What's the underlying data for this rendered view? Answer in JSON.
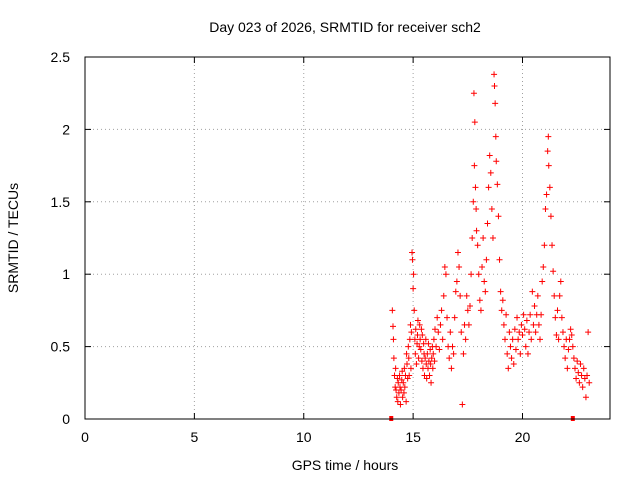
{
  "chart_data": {
    "type": "scatter",
    "title": "Day 023 of 2026, SRMTID for receiver sch2",
    "xlabel": "GPS time / hours",
    "ylabel": "SRMTID / TECUs",
    "xlim": [
      0,
      24
    ],
    "ylim": [
      0,
      2.5
    ],
    "xticks": [
      0,
      5,
      10,
      15,
      20
    ],
    "yticks": [
      0,
      0.5,
      1,
      1.5,
      2,
      2.5
    ],
    "xtick_labels": [
      "0",
      "5",
      "10",
      "15",
      "20"
    ],
    "ytick_labels": [
      "0",
      "0.5",
      "1",
      "1.5",
      "2",
      "2.5"
    ],
    "grid": true,
    "marker": "+",
    "color": "#ff0000",
    "series": [
      {
        "name": "SRMTID",
        "points": [
          [
            14.05,
            0.75
          ],
          [
            14.08,
            0.64
          ],
          [
            14.1,
            0.55
          ],
          [
            14.12,
            0.42
          ],
          [
            14.15,
            0.3
          ],
          [
            14.18,
            0.22
          ],
          [
            14.2,
            0.35
          ],
          [
            14.22,
            0.2
          ],
          [
            14.25,
            0.15
          ],
          [
            14.28,
            0.28
          ],
          [
            14.3,
            0.12
          ],
          [
            14.32,
            0.25
          ],
          [
            14.35,
            0.18
          ],
          [
            14.38,
            0.3
          ],
          [
            14.4,
            0.22
          ],
          [
            14.42,
            0.1
          ],
          [
            14.45,
            0.2
          ],
          [
            14.48,
            0.27
          ],
          [
            14.5,
            0.33
          ],
          [
            14.52,
            0.15
          ],
          [
            14.55,
            0.25
          ],
          [
            14.58,
            0.18
          ],
          [
            14.6,
            0.35
          ],
          [
            14.62,
            0.22
          ],
          [
            14.65,
            0.3
          ],
          [
            14.68,
            0.12
          ],
          [
            14.7,
            0.45
          ],
          [
            14.72,
            0.38
          ],
          [
            14.75,
            0.28
          ],
          [
            14.78,
            0.5
          ],
          [
            14.8,
            0.42
          ],
          [
            14.82,
            0.3
          ],
          [
            14.85,
            0.55
          ],
          [
            14.88,
            0.65
          ],
          [
            14.9,
            0.35
          ],
          [
            14.92,
            0.6
          ],
          [
            14.95,
            1.15
          ],
          [
            14.97,
            1.1
          ],
          [
            15.0,
            0.9
          ],
          [
            15.02,
            1.0
          ],
          [
            15.05,
            0.75
          ],
          [
            15.08,
            0.55
          ],
          [
            15.1,
            0.45
          ],
          [
            15.12,
            0.62
          ],
          [
            15.15,
            0.38
          ],
          [
            15.18,
            0.52
          ],
          [
            15.2,
            0.58
          ],
          [
            15.22,
            0.68
          ],
          [
            15.25,
            0.42
          ],
          [
            15.28,
            0.5
          ],
          [
            15.3,
            0.65
          ],
          [
            15.32,
            0.55
          ],
          [
            15.35,
            0.48
          ],
          [
            15.38,
            0.62
          ],
          [
            15.4,
            0.4
          ],
          [
            15.42,
            0.58
          ],
          [
            15.45,
            0.35
          ],
          [
            15.48,
            0.52
          ],
          [
            15.5,
            0.45
          ],
          [
            15.52,
            0.3
          ],
          [
            15.55,
            0.42
          ],
          [
            15.58,
            0.55
          ],
          [
            15.6,
            0.38
          ],
          [
            15.62,
            0.28
          ],
          [
            15.65,
            0.45
          ],
          [
            15.68,
            0.35
          ],
          [
            15.7,
            0.52
          ],
          [
            15.72,
            0.4
          ],
          [
            15.75,
            0.3
          ],
          [
            15.78,
            0.48
          ],
          [
            15.8,
            0.38
          ],
          [
            15.82,
            0.25
          ],
          [
            15.85,
            0.42
          ],
          [
            15.88,
            0.5
          ],
          [
            15.9,
            0.35
          ],
          [
            15.92,
            0.45
          ],
          [
            15.95,
            0.55
          ],
          [
            15.98,
            0.4
          ],
          [
            16.0,
            0.62
          ],
          [
            16.05,
            0.5
          ],
          [
            16.1,
            0.7
          ],
          [
            16.15,
            0.6
          ],
          [
            16.2,
            0.48
          ],
          [
            16.25,
            0.65
          ],
          [
            16.3,
            0.75
          ],
          [
            16.35,
            0.55
          ],
          [
            16.4,
            0.85
          ],
          [
            16.45,
            1.05
          ],
          [
            16.5,
            1.0
          ],
          [
            16.55,
            0.7
          ],
          [
            16.6,
            0.5
          ],
          [
            16.65,
            0.42
          ],
          [
            16.7,
            0.6
          ],
          [
            16.75,
            0.35
          ],
          [
            16.8,
            0.5
          ],
          [
            16.85,
            0.45
          ],
          [
            16.9,
            0.7
          ],
          [
            16.95,
            0.88
          ],
          [
            17.0,
            0.95
          ],
          [
            17.05,
            1.15
          ],
          [
            17.1,
            1.05
          ],
          [
            17.15,
            0.85
          ],
          [
            17.2,
            0.6
          ],
          [
            17.25,
            0.1
          ],
          [
            17.3,
            0.45
          ],
          [
            17.35,
            0.65
          ],
          [
            17.4,
            0.55
          ],
          [
            17.45,
            0.85
          ],
          [
            17.5,
            0.75
          ],
          [
            17.55,
            0.65
          ],
          [
            17.6,
            0.78
          ],
          [
            17.65,
            1.0
          ],
          [
            17.7,
            1.25
          ],
          [
            17.75,
            1.5
          ],
          [
            17.78,
            2.25
          ],
          [
            17.8,
            1.75
          ],
          [
            17.82,
            2.05
          ],
          [
            17.85,
            1.6
          ],
          [
            17.88,
            1.45
          ],
          [
            17.9,
            1.3
          ],
          [
            17.95,
            1.2
          ],
          [
            18.0,
            1.0
          ],
          [
            18.05,
            0.82
          ],
          [
            18.1,
            0.75
          ],
          [
            18.15,
            1.05
          ],
          [
            18.2,
            1.25
          ],
          [
            18.25,
            0.95
          ],
          [
            18.3,
            0.88
          ],
          [
            18.35,
            1.1
          ],
          [
            18.4,
            1.35
          ],
          [
            18.45,
            1.6
          ],
          [
            18.5,
            1.82
          ],
          [
            18.55,
            1.7
          ],
          [
            18.6,
            1.45
          ],
          [
            18.65,
            1.25
          ],
          [
            18.7,
            2.38
          ],
          [
            18.72,
            2.3
          ],
          [
            18.75,
            2.18
          ],
          [
            18.78,
            1.95
          ],
          [
            18.8,
            1.78
          ],
          [
            18.85,
            1.62
          ],
          [
            18.9,
            1.4
          ],
          [
            18.95,
            1.1
          ],
          [
            19.0,
            0.88
          ],
          [
            19.05,
            0.75
          ],
          [
            19.1,
            0.82
          ],
          [
            19.15,
            0.65
          ],
          [
            19.2,
            0.55
          ],
          [
            19.25,
            0.72
          ],
          [
            19.3,
            0.45
          ],
          [
            19.35,
            0.35
          ],
          [
            19.4,
            0.6
          ],
          [
            19.45,
            0.5
          ],
          [
            19.5,
            0.42
          ],
          [
            19.55,
            0.55
          ],
          [
            19.6,
            0.38
          ],
          [
            19.65,
            0.62
          ],
          [
            19.7,
            0.48
          ],
          [
            19.75,
            0.7
          ],
          [
            19.8,
            0.55
          ],
          [
            19.85,
            0.6
          ],
          [
            19.9,
            0.45
          ],
          [
            19.95,
            0.65
          ],
          [
            20.0,
            0.58
          ],
          [
            20.05,
            0.72
          ],
          [
            20.1,
            0.62
          ],
          [
            20.15,
            0.5
          ],
          [
            20.2,
            0.68
          ],
          [
            20.25,
            0.45
          ],
          [
            20.3,
            0.6
          ],
          [
            20.35,
            0.72
          ],
          [
            20.4,
            0.55
          ],
          [
            20.45,
            0.88
          ],
          [
            20.5,
            0.65
          ],
          [
            20.55,
            0.78
          ],
          [
            20.6,
            0.6
          ],
          [
            20.65,
            0.72
          ],
          [
            20.7,
            0.85
          ],
          [
            20.75,
            0.65
          ],
          [
            20.8,
            0.55
          ],
          [
            20.85,
            0.72
          ],
          [
            20.9,
            0.95
          ],
          [
            20.95,
            1.05
          ],
          [
            21.0,
            1.2
          ],
          [
            21.05,
            1.45
          ],
          [
            21.1,
            1.55
          ],
          [
            21.15,
            1.85
          ],
          [
            21.18,
            1.95
          ],
          [
            21.2,
            1.75
          ],
          [
            21.25,
            1.6
          ],
          [
            21.3,
            1.4
          ],
          [
            21.35,
            1.2
          ],
          [
            21.4,
            1.02
          ],
          [
            21.45,
            0.85
          ],
          [
            21.5,
            0.7
          ],
          [
            21.55,
            0.58
          ],
          [
            21.6,
            0.75
          ],
          [
            21.65,
            0.55
          ],
          [
            21.7,
            0.85
          ],
          [
            21.75,
            0.95
          ],
          [
            21.8,
            0.7
          ],
          [
            21.85,
            0.6
          ],
          [
            21.9,
            0.5
          ],
          [
            21.95,
            0.42
          ],
          [
            22.0,
            0.55
          ],
          [
            22.05,
            0.35
          ],
          [
            22.1,
            0.48
          ],
          [
            22.15,
            0.55
          ],
          [
            22.2,
            0.62
          ],
          [
            22.25,
            0.58
          ],
          [
            22.3,
            0.5
          ],
          [
            22.35,
            0.42
          ],
          [
            22.4,
            0.35
          ],
          [
            22.45,
            0.28
          ],
          [
            22.5,
            0.4
          ],
          [
            22.55,
            0.32
          ],
          [
            22.6,
            0.25
          ],
          [
            22.65,
            0.38
          ],
          [
            22.7,
            0.3
          ],
          [
            22.75,
            0.22
          ],
          [
            22.8,
            0.35
          ],
          [
            22.85,
            0.28
          ],
          [
            22.9,
            0.15
          ],
          [
            22.95,
            0.3
          ],
          [
            23.0,
            0.6
          ],
          [
            23.05,
            0.25
          ]
        ]
      }
    ],
    "baseline_markers": [
      14.0,
      22.3
    ]
  }
}
